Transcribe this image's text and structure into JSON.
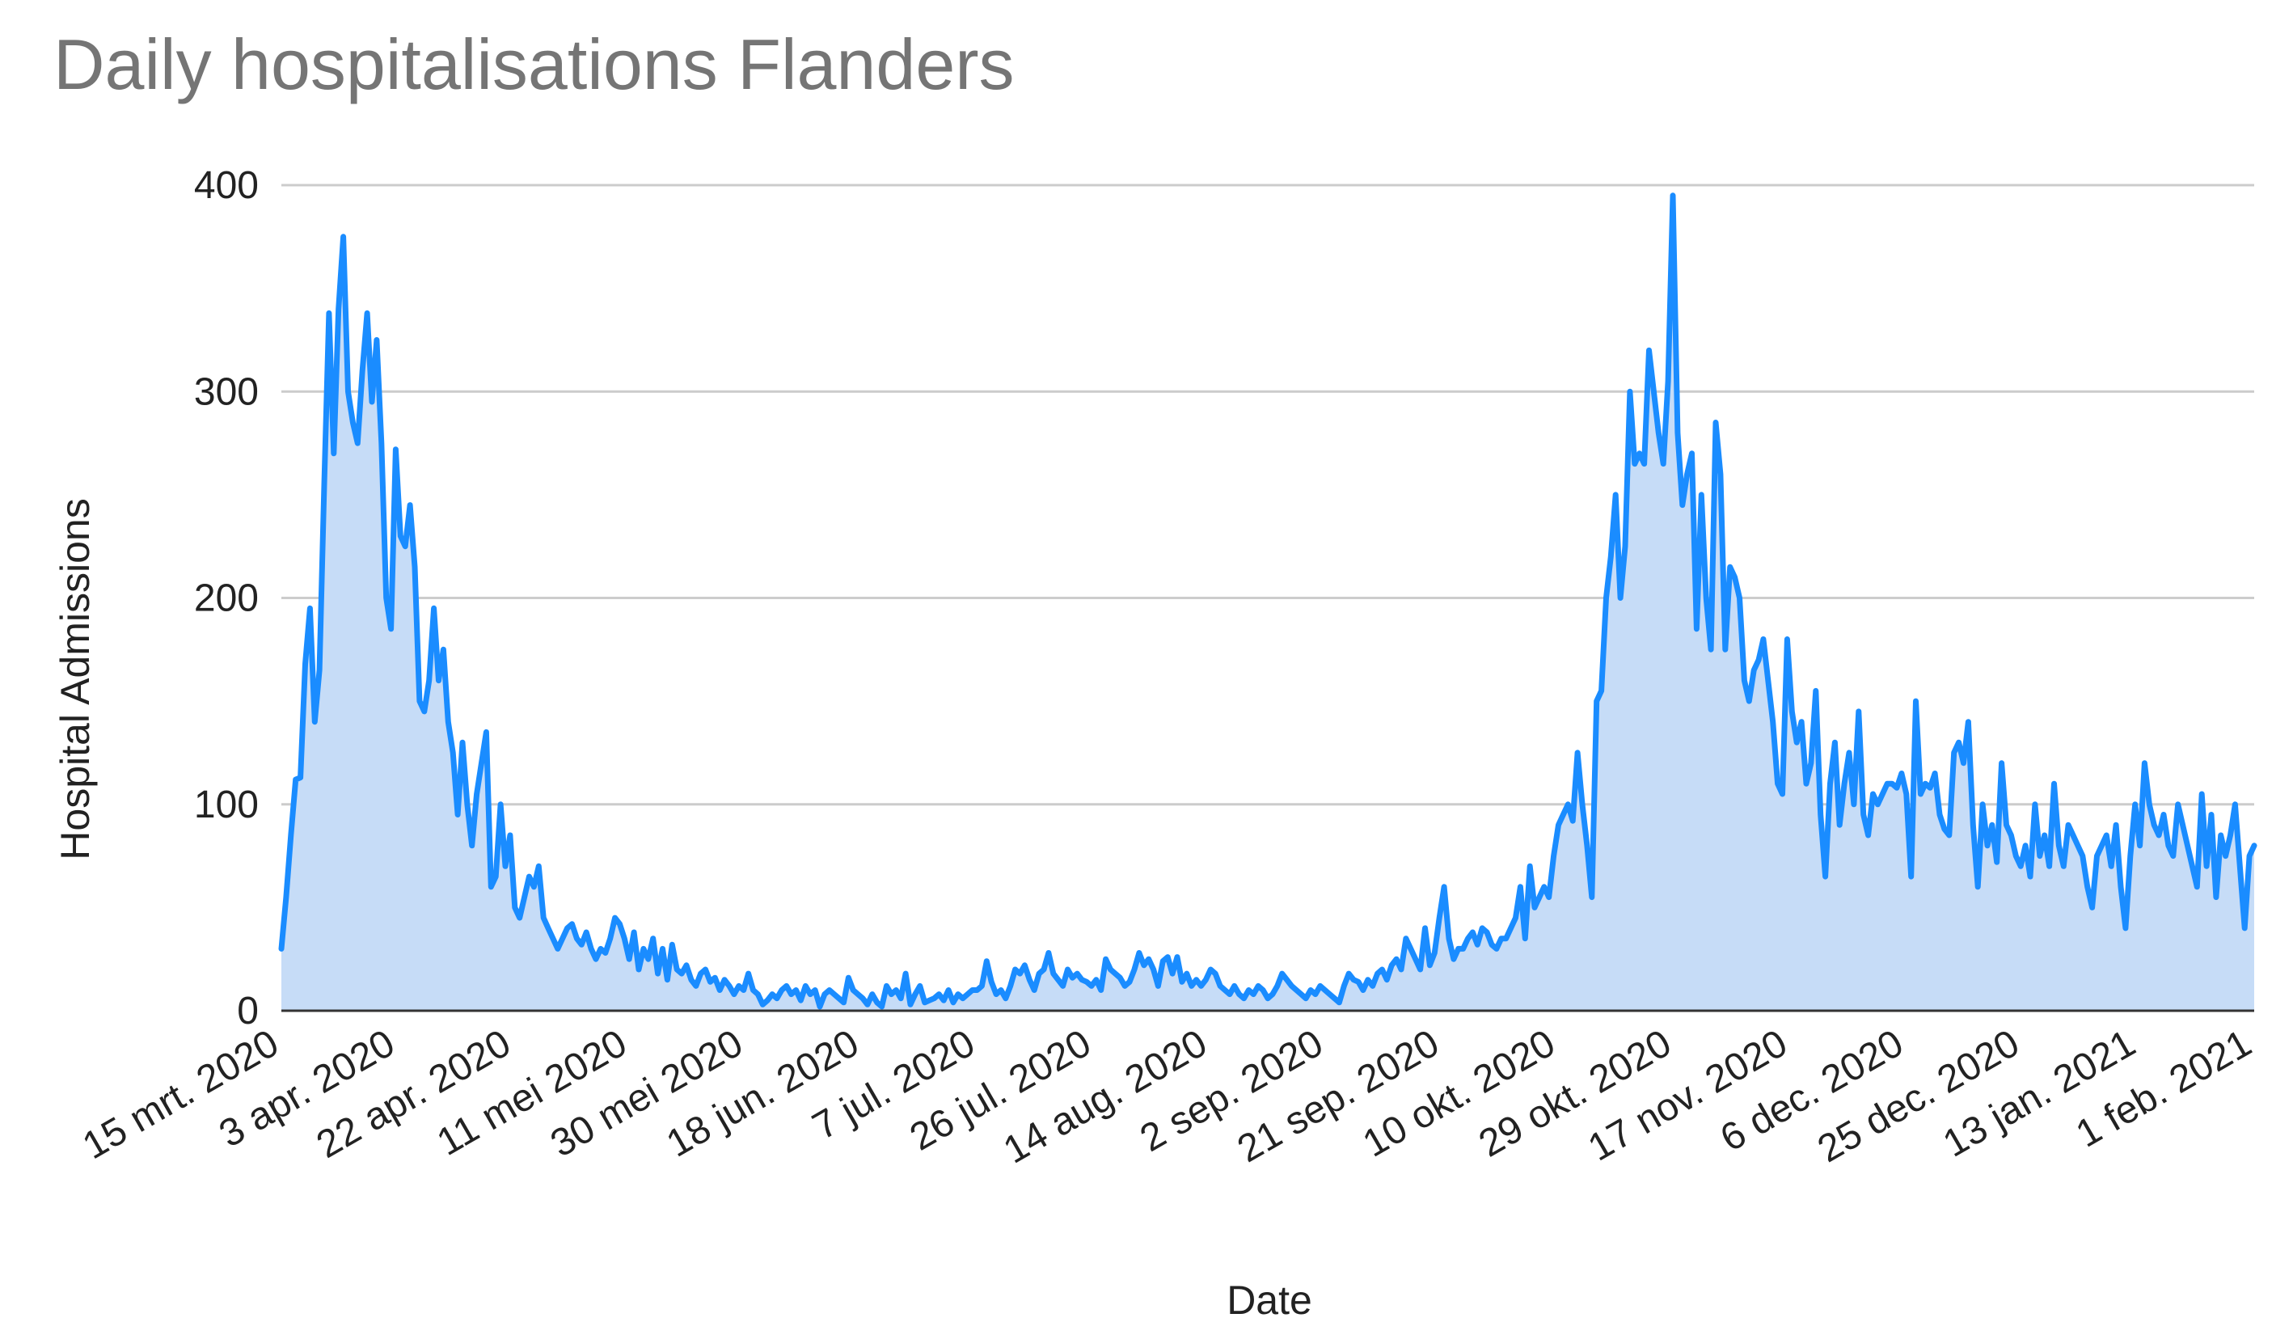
{
  "chart_data": {
    "type": "area",
    "title": "Daily hospitalisations Flanders",
    "xlabel": "Date",
    "ylabel": "Hospital Admissions",
    "ylim": [
      0,
      400
    ],
    "yticks": [
      0,
      100,
      200,
      300,
      400
    ],
    "grid": true,
    "legend": "none",
    "x_start": "2020-03-15",
    "x_end": "2021-02-01",
    "xtick_labels": [
      {
        "date": "2020-03-15",
        "label": "15 mrt. 2020"
      },
      {
        "date": "2020-04-03",
        "label": "3 apr. 2020"
      },
      {
        "date": "2020-04-22",
        "label": "22 apr. 2020"
      },
      {
        "date": "2020-05-11",
        "label": "11 mei 2020"
      },
      {
        "date": "2020-05-30",
        "label": "30 mei 2020"
      },
      {
        "date": "2020-06-18",
        "label": "18 jun. 2020"
      },
      {
        "date": "2020-07-07",
        "label": "7 jul. 2020"
      },
      {
        "date": "2020-07-26",
        "label": "26 jul. 2020"
      },
      {
        "date": "2020-08-14",
        "label": "14 aug. 2020"
      },
      {
        "date": "2020-09-02",
        "label": "2 sep. 2020"
      },
      {
        "date": "2020-09-21",
        "label": "21 sep. 2020"
      },
      {
        "date": "2020-10-10",
        "label": "10 okt. 2020"
      },
      {
        "date": "2020-10-29",
        "label": "29 okt. 2020"
      },
      {
        "date": "2020-11-17",
        "label": "17 nov. 2020"
      },
      {
        "date": "2020-12-06",
        "label": "6 dec. 2020"
      },
      {
        "date": "2020-12-25",
        "label": "25 dec. 2020"
      },
      {
        "date": "2021-01-13",
        "label": "13 jan. 2021"
      },
      {
        "date": "2021-02-01",
        "label": "1 feb. 2021"
      }
    ],
    "colors": {
      "line": "#1a8cff",
      "area": "#c6dcf7",
      "grid": "#cccccc",
      "title": "#757575"
    },
    "series": [
      {
        "name": "",
        "values": [
          30,
          55,
          85,
          112,
          113,
          168,
          195,
          140,
          165,
          255,
          338,
          270,
          340,
          375,
          300,
          285,
          275,
          310,
          338,
          295,
          325,
          275,
          200,
          185,
          272,
          230,
          225,
          245,
          215,
          150,
          145,
          160,
          195,
          160,
          175,
          140,
          125,
          95,
          130,
          100,
          80,
          105,
          120,
          135,
          60,
          65,
          100,
          70,
          85,
          50,
          45,
          55,
          65,
          60,
          70,
          45,
          40,
          35,
          30,
          35,
          40,
          42,
          35,
          32,
          38,
          30,
          25,
          30,
          28,
          35,
          45,
          42,
          35,
          25,
          38,
          20,
          30,
          25,
          35,
          18,
          30,
          15,
          32,
          20,
          18,
          22,
          15,
          12,
          18,
          20,
          14,
          16,
          10,
          15,
          12,
          8,
          12,
          10,
          18,
          10,
          8,
          3,
          5,
          8,
          6,
          10,
          12,
          8,
          10,
          5,
          12,
          8,
          10,
          2,
          8,
          10,
          8,
          6,
          4,
          16,
          10,
          8,
          6,
          3,
          8,
          4,
          2,
          12,
          8,
          10,
          6,
          18,
          3,
          8,
          12,
          4,
          5,
          6,
          8,
          5,
          10,
          4,
          8,
          6,
          8,
          10,
          10,
          12,
          24,
          14,
          8,
          10,
          6,
          12,
          20,
          18,
          22,
          15,
          10,
          18,
          20,
          28,
          18,
          15,
          12,
          20,
          16,
          18,
          15,
          14,
          12,
          15,
          10,
          25,
          20,
          18,
          16,
          12,
          14,
          20,
          28,
          22,
          25,
          20,
          12,
          24,
          26,
          18,
          26,
          14,
          18,
          12,
          15,
          12,
          15,
          20,
          18,
          12,
          10,
          8,
          12,
          8,
          6,
          10,
          8,
          12,
          10,
          6,
          8,
          12,
          18,
          15,
          12,
          10,
          8,
          6,
          10,
          8,
          12,
          10,
          8,
          6,
          4,
          12,
          18,
          15,
          14,
          10,
          15,
          12,
          18,
          20,
          15,
          22,
          25,
          20,
          35,
          30,
          25,
          20,
          40,
          22,
          28,
          45,
          60,
          35,
          25,
          30,
          30,
          35,
          38,
          32,
          40,
          38,
          32,
          30,
          35,
          35,
          40,
          45,
          60,
          35,
          70,
          50,
          55,
          60,
          55,
          75,
          90,
          95,
          100,
          92,
          125,
          100,
          80,
          55,
          150,
          155,
          200,
          220,
          250,
          200,
          225,
          300,
          265,
          270,
          265,
          320,
          300,
          280,
          265,
          305,
          395,
          280,
          245,
          260,
          270,
          185,
          250,
          200,
          175,
          285,
          260,
          175,
          215,
          210,
          200,
          160,
          150,
          165,
          170,
          180,
          160,
          140,
          110,
          105,
          180,
          145,
          130,
          140,
          110,
          120,
          155,
          95,
          65,
          110,
          130,
          90,
          110,
          125,
          100,
          145,
          95,
          85,
          105,
          100,
          105,
          110,
          110,
          108,
          115,
          105,
          65,
          150,
          105,
          110,
          108,
          115,
          95,
          88,
          85,
          125,
          130,
          120,
          140,
          90,
          60,
          100,
          80,
          90,
          72,
          120,
          90,
          85,
          75,
          70,
          80,
          65,
          100,
          75,
          85,
          70,
          110,
          80,
          70,
          90,
          85,
          80,
          75,
          60,
          50,
          75,
          80,
          85,
          70,
          90,
          60,
          40,
          75,
          100,
          80,
          120,
          100,
          90,
          85,
          95,
          80,
          75,
          100,
          90,
          80,
          70,
          60,
          105,
          70,
          95,
          55,
          85,
          75,
          85,
          100,
          70,
          40,
          75,
          80
        ]
      }
    ]
  }
}
